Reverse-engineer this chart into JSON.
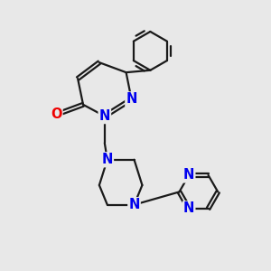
{
  "bg_color": "#e8e8e8",
  "bond_color": "#1a1a1a",
  "N_color": "#0000ee",
  "O_color": "#ee0000",
  "line_width": 1.6,
  "font_size": 10.5,
  "figsize": [
    3.0,
    3.0
  ],
  "dpi": 100,
  "xlim": [
    0,
    10
  ],
  "ylim": [
    0,
    10
  ]
}
